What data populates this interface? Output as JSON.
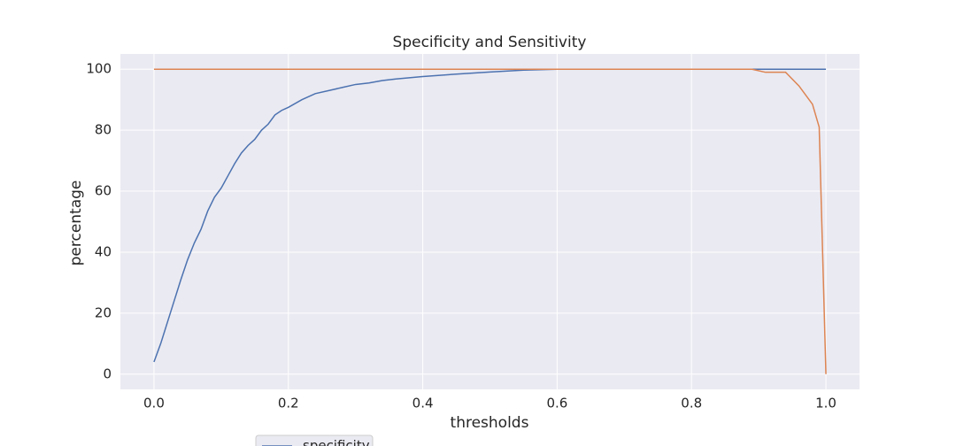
{
  "chart_data": {
    "type": "line",
    "title": "Specificity and Sensitivity",
    "x_label": "thresholds",
    "y_label": "percentage",
    "x": [
      0,
      0.01,
      0.02,
      0.03,
      0.04,
      0.05,
      0.06,
      0.07,
      0.08,
      0.09,
      0.1,
      0.11,
      0.12,
      0.13,
      0.14,
      0.15,
      0.16,
      0.17,
      0.18,
      0.19,
      0.2,
      0.22,
      0.24,
      0.26,
      0.28,
      0.3,
      0.32,
      0.34,
      0.36,
      0.38,
      0.4,
      0.45,
      0.5,
      0.55,
      0.6,
      0.7,
      0.8,
      0.89,
      0.91,
      0.94,
      0.96,
      0.98,
      0.99,
      1.0
    ],
    "series": [
      {
        "name": "specificity",
        "color": "#4c72b0",
        "values": [
          4,
          10,
          17,
          24,
          31,
          37.5,
          43,
          47.5,
          53.5,
          58,
          61,
          65,
          69,
          72.5,
          75,
          77,
          80,
          82,
          85,
          86.5,
          87.5,
          90,
          92,
          93,
          94,
          95,
          95.5,
          96.3,
          96.8,
          97.2,
          97.6,
          98.4,
          99.1,
          99.7,
          100,
          100,
          100,
          100,
          100,
          100,
          100,
          100,
          100,
          100
        ]
      },
      {
        "color": "#dd8452",
        "values": [
          100,
          100,
          100,
          100,
          100,
          100,
          100,
          100,
          100,
          100,
          100,
          100,
          100,
          100,
          100,
          100,
          100,
          100,
          100,
          100,
          100,
          100,
          100,
          100,
          100,
          100,
          100,
          100,
          100,
          100,
          100,
          100,
          100,
          100,
          100,
          100,
          100,
          100,
          99,
          99,
          94.5,
          88.5,
          81,
          0
        ]
      }
    ],
    "xlim": [
      -0.05,
      1.05
    ],
    "ylim": [
      -5,
      105
    ],
    "xticks": [
      {
        "value": 0,
        "label": "0.0"
      },
      0.2,
      0.4,
      0.6,
      0.8,
      {
        "value": 1,
        "label": "1.0"
      }
    ],
    "yticks": [
      0,
      20,
      40,
      60,
      80,
      100
    ],
    "grid": true
  }
}
